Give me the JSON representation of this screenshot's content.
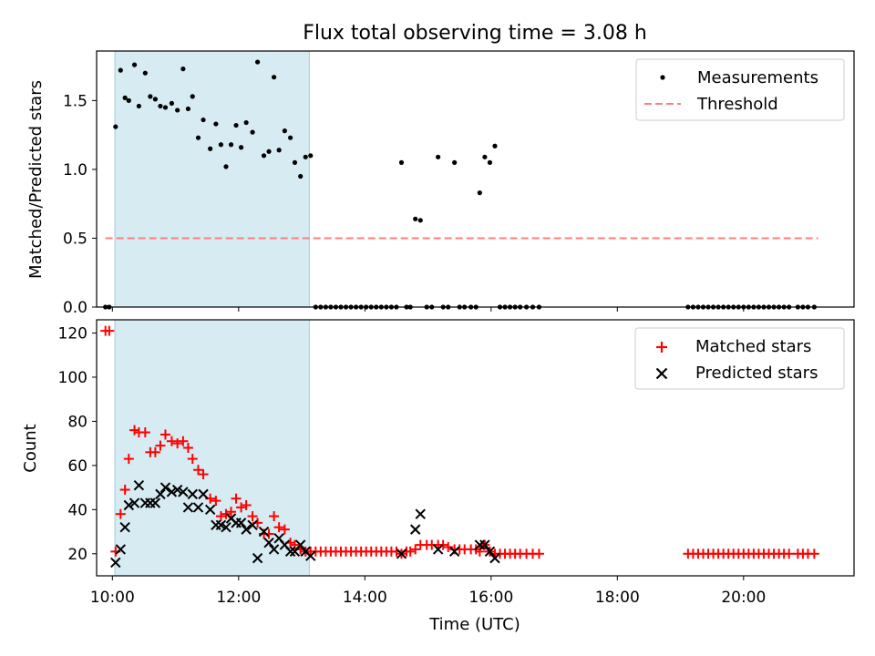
{
  "chart_data": [
    {
      "type": "scatter",
      "title": "Flux total observing time = 3.08 h",
      "xlabel": "",
      "ylabel": "Matched/Predicted stars",
      "xlim": [
        9.75,
        21.75
      ],
      "ylim": [
        0,
        1.86
      ],
      "x_ticks": [
        10,
        12,
        14,
        16,
        18,
        20
      ],
      "y_ticks": [
        0.0,
        0.5,
        1.0,
        1.5
      ],
      "y_tick_labels": [
        "0.0",
        "0.5",
        "1.0",
        "1.5"
      ],
      "legend_position": "upper right",
      "shaded_interval": [
        10.04,
        13.12
      ],
      "series": [
        {
          "name": "Measurements",
          "marker": "dot",
          "color": "#000000",
          "points": [
            [
              9.89,
              0
            ],
            [
              9.95,
              0
            ],
            [
              10.05,
              1.31
            ],
            [
              10.13,
              1.72
            ],
            [
              10.2,
              1.52
            ],
            [
              10.26,
              1.5
            ],
            [
              10.35,
              1.76
            ],
            [
              10.42,
              1.46
            ],
            [
              10.52,
              1.7
            ],
            [
              10.6,
              1.53
            ],
            [
              10.68,
              1.51
            ],
            [
              10.76,
              1.46
            ],
            [
              10.84,
              1.45
            ],
            [
              10.94,
              1.48
            ],
            [
              11.03,
              1.43
            ],
            [
              11.12,
              1.73
            ],
            [
              11.2,
              1.44
            ],
            [
              11.27,
              1.53
            ],
            [
              11.36,
              1.23
            ],
            [
              11.44,
              1.36
            ],
            [
              11.55,
              1.15
            ],
            [
              11.64,
              1.33
            ],
            [
              11.72,
              1.18
            ],
            [
              11.8,
              1.02
            ],
            [
              11.88,
              1.18
            ],
            [
              11.96,
              1.32
            ],
            [
              12.04,
              1.16
            ],
            [
              12.12,
              1.34
            ],
            [
              12.22,
              1.27
            ],
            [
              12.3,
              1.78
            ],
            [
              12.4,
              1.1
            ],
            [
              12.48,
              1.13
            ],
            [
              12.56,
              1.67
            ],
            [
              12.64,
              1.14
            ],
            [
              12.73,
              1.28
            ],
            [
              12.82,
              1.23
            ],
            [
              12.89,
              1.05
            ],
            [
              12.98,
              0.95
            ],
            [
              13.06,
              1.09
            ],
            [
              13.14,
              1.1
            ],
            [
              13.22,
              0
            ],
            [
              13.3,
              0
            ],
            [
              13.38,
              0
            ],
            [
              13.46,
              0
            ],
            [
              13.54,
              0
            ],
            [
              13.62,
              0
            ],
            [
              13.7,
              0
            ],
            [
              13.78,
              0
            ],
            [
              13.86,
              0
            ],
            [
              13.94,
              0
            ],
            [
              14.02,
              0
            ],
            [
              14.1,
              0
            ],
            [
              14.18,
              0
            ],
            [
              14.26,
              0
            ],
            [
              14.34,
              0
            ],
            [
              14.42,
              0
            ],
            [
              14.5,
              0
            ],
            [
              14.58,
              1.05
            ],
            [
              14.66,
              0
            ],
            [
              14.72,
              0
            ],
            [
              14.8,
              0.64
            ],
            [
              14.88,
              0.63
            ],
            [
              14.98,
              0
            ],
            [
              15.06,
              0
            ],
            [
              15.16,
              1.09
            ],
            [
              15.24,
              0
            ],
            [
              15.32,
              0
            ],
            [
              15.42,
              1.05
            ],
            [
              15.5,
              0
            ],
            [
              15.58,
              0
            ],
            [
              15.68,
              0
            ],
            [
              15.76,
              0
            ],
            [
              15.82,
              0.83
            ],
            [
              15.9,
              1.09
            ],
            [
              15.98,
              1.05
            ],
            [
              16.06,
              1.17
            ],
            [
              16.14,
              0
            ],
            [
              16.22,
              0
            ],
            [
              16.3,
              0
            ],
            [
              16.38,
              0
            ],
            [
              16.46,
              0
            ],
            [
              16.56,
              0
            ],
            [
              16.66,
              0
            ],
            [
              16.76,
              0
            ],
            [
              19.12,
              0
            ],
            [
              19.2,
              0
            ],
            [
              19.28,
              0
            ],
            [
              19.36,
              0
            ],
            [
              19.44,
              0
            ],
            [
              19.52,
              0
            ],
            [
              19.6,
              0
            ],
            [
              19.68,
              0
            ],
            [
              19.76,
              0
            ],
            [
              19.84,
              0
            ],
            [
              19.92,
              0
            ],
            [
              20.0,
              0
            ],
            [
              20.08,
              0
            ],
            [
              20.16,
              0
            ],
            [
              20.24,
              0
            ],
            [
              20.32,
              0
            ],
            [
              20.4,
              0
            ],
            [
              20.48,
              0
            ],
            [
              20.56,
              0
            ],
            [
              20.64,
              0
            ],
            [
              20.72,
              0
            ],
            [
              20.86,
              0
            ],
            [
              20.94,
              0
            ],
            [
              21.02,
              0
            ],
            [
              21.12,
              0
            ]
          ]
        },
        {
          "name": "Threshold",
          "line_style": "dashed",
          "color": "#ff7f7f",
          "points": [
            [
              9.89,
              0.5
            ],
            [
              21.18,
              0.5
            ]
          ]
        }
      ]
    },
    {
      "type": "scatter",
      "title": "",
      "xlabel": "Time (UTC)",
      "ylabel": "Count",
      "xlim": [
        9.75,
        21.75
      ],
      "ylim": [
        10,
        126
      ],
      "x_ticks": [
        10,
        12,
        14,
        16,
        18,
        20
      ],
      "x_tick_labels": [
        "10:00",
        "12:00",
        "14:00",
        "16:00",
        "18:00",
        "20:00"
      ],
      "y_ticks": [
        20,
        40,
        60,
        80,
        100,
        120
      ],
      "y_tick_labels": [
        "20",
        "40",
        "60",
        "80",
        "100",
        "120"
      ],
      "legend_position": "upper right",
      "shaded_interval": [
        10.04,
        13.12
      ],
      "series": [
        {
          "name": "Matched stars",
          "marker": "plus",
          "color": "#ff0000",
          "points": [
            [
              9.89,
              121
            ],
            [
              9.95,
              121
            ],
            [
              10.05,
              21
            ],
            [
              10.13,
              38
            ],
            [
              10.2,
              49
            ],
            [
              10.26,
              63
            ],
            [
              10.35,
              76
            ],
            [
              10.42,
              75
            ],
            [
              10.52,
              75
            ],
            [
              10.6,
              66
            ],
            [
              10.68,
              66
            ],
            [
              10.76,
              69
            ],
            [
              10.84,
              74
            ],
            [
              10.94,
              71
            ],
            [
              11.03,
              70
            ],
            [
              11.12,
              71
            ],
            [
              11.2,
              68
            ],
            [
              11.27,
              63
            ],
            [
              11.36,
              58
            ],
            [
              11.44,
              56
            ],
            [
              11.55,
              45
            ],
            [
              11.64,
              44
            ],
            [
              11.72,
              37
            ],
            [
              11.8,
              38
            ],
            [
              11.88,
              39
            ],
            [
              11.96,
              45
            ],
            [
              12.04,
              41
            ],
            [
              12.12,
              42
            ],
            [
              12.22,
              37
            ],
            [
              12.3,
              34
            ],
            [
              12.4,
              29
            ],
            [
              12.48,
              29
            ],
            [
              12.56,
              37
            ],
            [
              12.64,
              32
            ],
            [
              12.73,
              31
            ],
            [
              12.82,
              25
            ],
            [
              12.89,
              24
            ],
            [
              12.98,
              22
            ],
            [
              13.06,
              21
            ],
            [
              13.14,
              21
            ],
            [
              13.22,
              21
            ],
            [
              13.3,
              21
            ],
            [
              13.38,
              21
            ],
            [
              13.46,
              21
            ],
            [
              13.54,
              21
            ],
            [
              13.62,
              21
            ],
            [
              13.7,
              21
            ],
            [
              13.78,
              21
            ],
            [
              13.86,
              21
            ],
            [
              13.94,
              21
            ],
            [
              14.02,
              21
            ],
            [
              14.1,
              21
            ],
            [
              14.18,
              21
            ],
            [
              14.26,
              21
            ],
            [
              14.34,
              21
            ],
            [
              14.42,
              21
            ],
            [
              14.5,
              21
            ],
            [
              14.58,
              20
            ],
            [
              14.66,
              21
            ],
            [
              14.72,
              21
            ],
            [
              14.8,
              22
            ],
            [
              14.88,
              24
            ],
            [
              14.98,
              24
            ],
            [
              15.06,
              24
            ],
            [
              15.16,
              24
            ],
            [
              15.24,
              24
            ],
            [
              15.32,
              23
            ],
            [
              15.42,
              22
            ],
            [
              15.5,
              22
            ],
            [
              15.58,
              22
            ],
            [
              15.68,
              22
            ],
            [
              15.76,
              22
            ],
            [
              15.82,
              21
            ],
            [
              15.9,
              24
            ],
            [
              15.98,
              21
            ],
            [
              16.06,
              20
            ],
            [
              16.14,
              20
            ],
            [
              16.22,
              20
            ],
            [
              16.3,
              20
            ],
            [
              16.38,
              20
            ],
            [
              16.46,
              20
            ],
            [
              16.56,
              20
            ],
            [
              16.66,
              20
            ],
            [
              16.76,
              20
            ],
            [
              19.12,
              20
            ],
            [
              19.2,
              20
            ],
            [
              19.28,
              20
            ],
            [
              19.36,
              20
            ],
            [
              19.44,
              20
            ],
            [
              19.52,
              20
            ],
            [
              19.6,
              20
            ],
            [
              19.68,
              20
            ],
            [
              19.76,
              20
            ],
            [
              19.84,
              20
            ],
            [
              19.92,
              20
            ],
            [
              20.0,
              20
            ],
            [
              20.08,
              20
            ],
            [
              20.16,
              20
            ],
            [
              20.24,
              20
            ],
            [
              20.32,
              20
            ],
            [
              20.4,
              20
            ],
            [
              20.48,
              20
            ],
            [
              20.56,
              20
            ],
            [
              20.64,
              20
            ],
            [
              20.72,
              20
            ],
            [
              20.86,
              20
            ],
            [
              20.94,
              20
            ],
            [
              21.02,
              20
            ],
            [
              21.12,
              20
            ]
          ]
        },
        {
          "name": "Predicted stars",
          "marker": "x",
          "color": "#000000",
          "points": [
            [
              10.05,
              16
            ],
            [
              10.13,
              22
            ],
            [
              10.2,
              32
            ],
            [
              10.26,
              42
            ],
            [
              10.35,
              43
            ],
            [
              10.42,
              51
            ],
            [
              10.52,
              43
            ],
            [
              10.6,
              43
            ],
            [
              10.68,
              43
            ],
            [
              10.76,
              47
            ],
            [
              10.84,
              50
            ],
            [
              10.94,
              48
            ],
            [
              11.03,
              49
            ],
            [
              11.12,
              48
            ],
            [
              11.2,
              41
            ],
            [
              11.27,
              47
            ],
            [
              11.36,
              41
            ],
            [
              11.44,
              47
            ],
            [
              11.55,
              40
            ],
            [
              11.64,
              33
            ],
            [
              11.72,
              33
            ],
            [
              11.8,
              32
            ],
            [
              11.88,
              36
            ],
            [
              11.96,
              34
            ],
            [
              12.04,
              34
            ],
            [
              12.12,
              31
            ],
            [
              12.22,
              33
            ],
            [
              12.3,
              18
            ],
            [
              12.4,
              30
            ],
            [
              12.48,
              25
            ],
            [
              12.56,
              22
            ],
            [
              12.64,
              27
            ],
            [
              12.73,
              24
            ],
            [
              12.82,
              21
            ],
            [
              12.89,
              21
            ],
            [
              12.98,
              24
            ],
            [
              13.06,
              21
            ],
            [
              13.14,
              19
            ],
            [
              14.58,
              20
            ],
            [
              14.8,
              31
            ],
            [
              14.88,
              38
            ],
            [
              15.16,
              22
            ],
            [
              15.42,
              21
            ],
            [
              15.82,
              24
            ],
            [
              15.9,
              24
            ],
            [
              15.98,
              21
            ],
            [
              16.06,
              18
            ]
          ]
        }
      ]
    }
  ]
}
